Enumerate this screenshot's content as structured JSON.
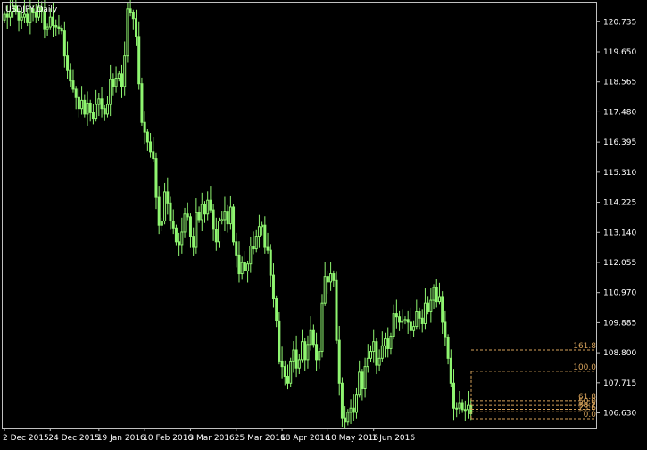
{
  "chart_data": {
    "type": "candlestick",
    "title": "USDJPY,Daily",
    "colors": {
      "background": "#000000",
      "frame": "#c0c0c0",
      "candle": "#8ff570",
      "text": "#ffffff",
      "fibo": "#d6a25a"
    },
    "ylim": [
      106.1,
      121.42
    ],
    "y_ticks": [
      120.735,
      119.65,
      118.565,
      117.48,
      116.395,
      115.31,
      114.225,
      113.14,
      112.055,
      110.97,
      109.885,
      108.8,
      107.715,
      106.63
    ],
    "y_tick_labels": [
      "120.735",
      "119.650",
      "118.565",
      "117.480",
      "116.395",
      "115.310",
      "114.225",
      "113.140",
      "112.055",
      "110.970",
      "109.885",
      "108.800",
      "107.715",
      "106.630"
    ],
    "x_ticks": [
      {
        "label": "2 Dec 2015",
        "index": 0
      },
      {
        "label": "24 Dec 2015",
        "index": 16
      },
      {
        "label": "19 Jan 2016",
        "index": 33
      },
      {
        "label": "10 Feb 2016",
        "index": 49
      },
      {
        "label": "3 Mar 2016",
        "index": 65
      },
      {
        "label": "25 Mar 2016",
        "index": 81
      },
      {
        "label": "18 Apr 2016",
        "index": 97
      },
      {
        "label": "10 May 2016",
        "index": 113
      },
      {
        "label": "1 Jun 2016",
        "index": 129
      }
    ],
    "closes": [
      121.0,
      120.9,
      121.1,
      121.3,
      121.1,
      120.8,
      120.9,
      121.0,
      120.7,
      121.2,
      121.05,
      120.9,
      121.25,
      121.1,
      120.45,
      120.55,
      120.9,
      120.6,
      120.55,
      120.5,
      120.4,
      119.5,
      119.0,
      118.6,
      118.3,
      118.0,
      117.6,
      117.9,
      117.4,
      117.8,
      117.45,
      117.25,
      117.75,
      117.95,
      117.6,
      117.4,
      117.75,
      118.65,
      118.4,
      118.7,
      118.85,
      118.4,
      119.5,
      121.2,
      121.05,
      120.85,
      120.2,
      118.5,
      117.1,
      116.75,
      116.4,
      116.05,
      115.8,
      114.4,
      113.4,
      113.55,
      114.6,
      114.2,
      113.55,
      113.3,
      112.8,
      112.7,
      113.15,
      113.8,
      113.7,
      113.0,
      112.6,
      113.85,
      113.6,
      114.15,
      113.8,
      114.3,
      113.95,
      113.25,
      112.8,
      113.55,
      113.6,
      113.9,
      113.45,
      114.05,
      112.8,
      112.3,
      111.65,
      112.05,
      111.75,
      112.0,
      112.65,
      112.55,
      113.0,
      113.35,
      113.4,
      112.6,
      112.5,
      111.6,
      110.75,
      109.95,
      108.5,
      108.3,
      107.95,
      107.7,
      108.5,
      108.9,
      108.25,
      108.55,
      109.2,
      108.55,
      109.1,
      109.6,
      109.1,
      108.55,
      108.85,
      110.6,
      111.55,
      111.35,
      111.65,
      111.4,
      109.25,
      107.7,
      106.45,
      106.3,
      106.65,
      106.8,
      106.65,
      107.3,
      108.1,
      107.5,
      108.3,
      108.6,
      108.85,
      109.2,
      108.35,
      108.6,
      109.05,
      109.3,
      108.95,
      109.4,
      110.2,
      110.1,
      109.9,
      109.95,
      110.0,
      109.9,
      109.6,
      109.75,
      110.3,
      110.05,
      109.85,
      110.6,
      110.3,
      110.7,
      111.15,
      110.65,
      110.8,
      109.9,
      109.35,
      108.6,
      107.7,
      106.8,
      106.8,
      107.0,
      106.75,
      106.75,
      106.9,
      106.6
    ],
    "fibonacci_levels": [
      {
        "label": "161.8",
        "price": 108.9
      },
      {
        "label": "100.0",
        "price": 108.13
      },
      {
        "label": "61.8",
        "price": 107.07
      },
      {
        "label": "50.0",
        "price": 106.9
      },
      {
        "label": "38.2",
        "price": 106.76
      },
      {
        "label": "23.6",
        "price": 106.67
      },
      {
        "label": "0.0",
        "price": 106.42
      }
    ],
    "grid": false,
    "legend": "none"
  }
}
